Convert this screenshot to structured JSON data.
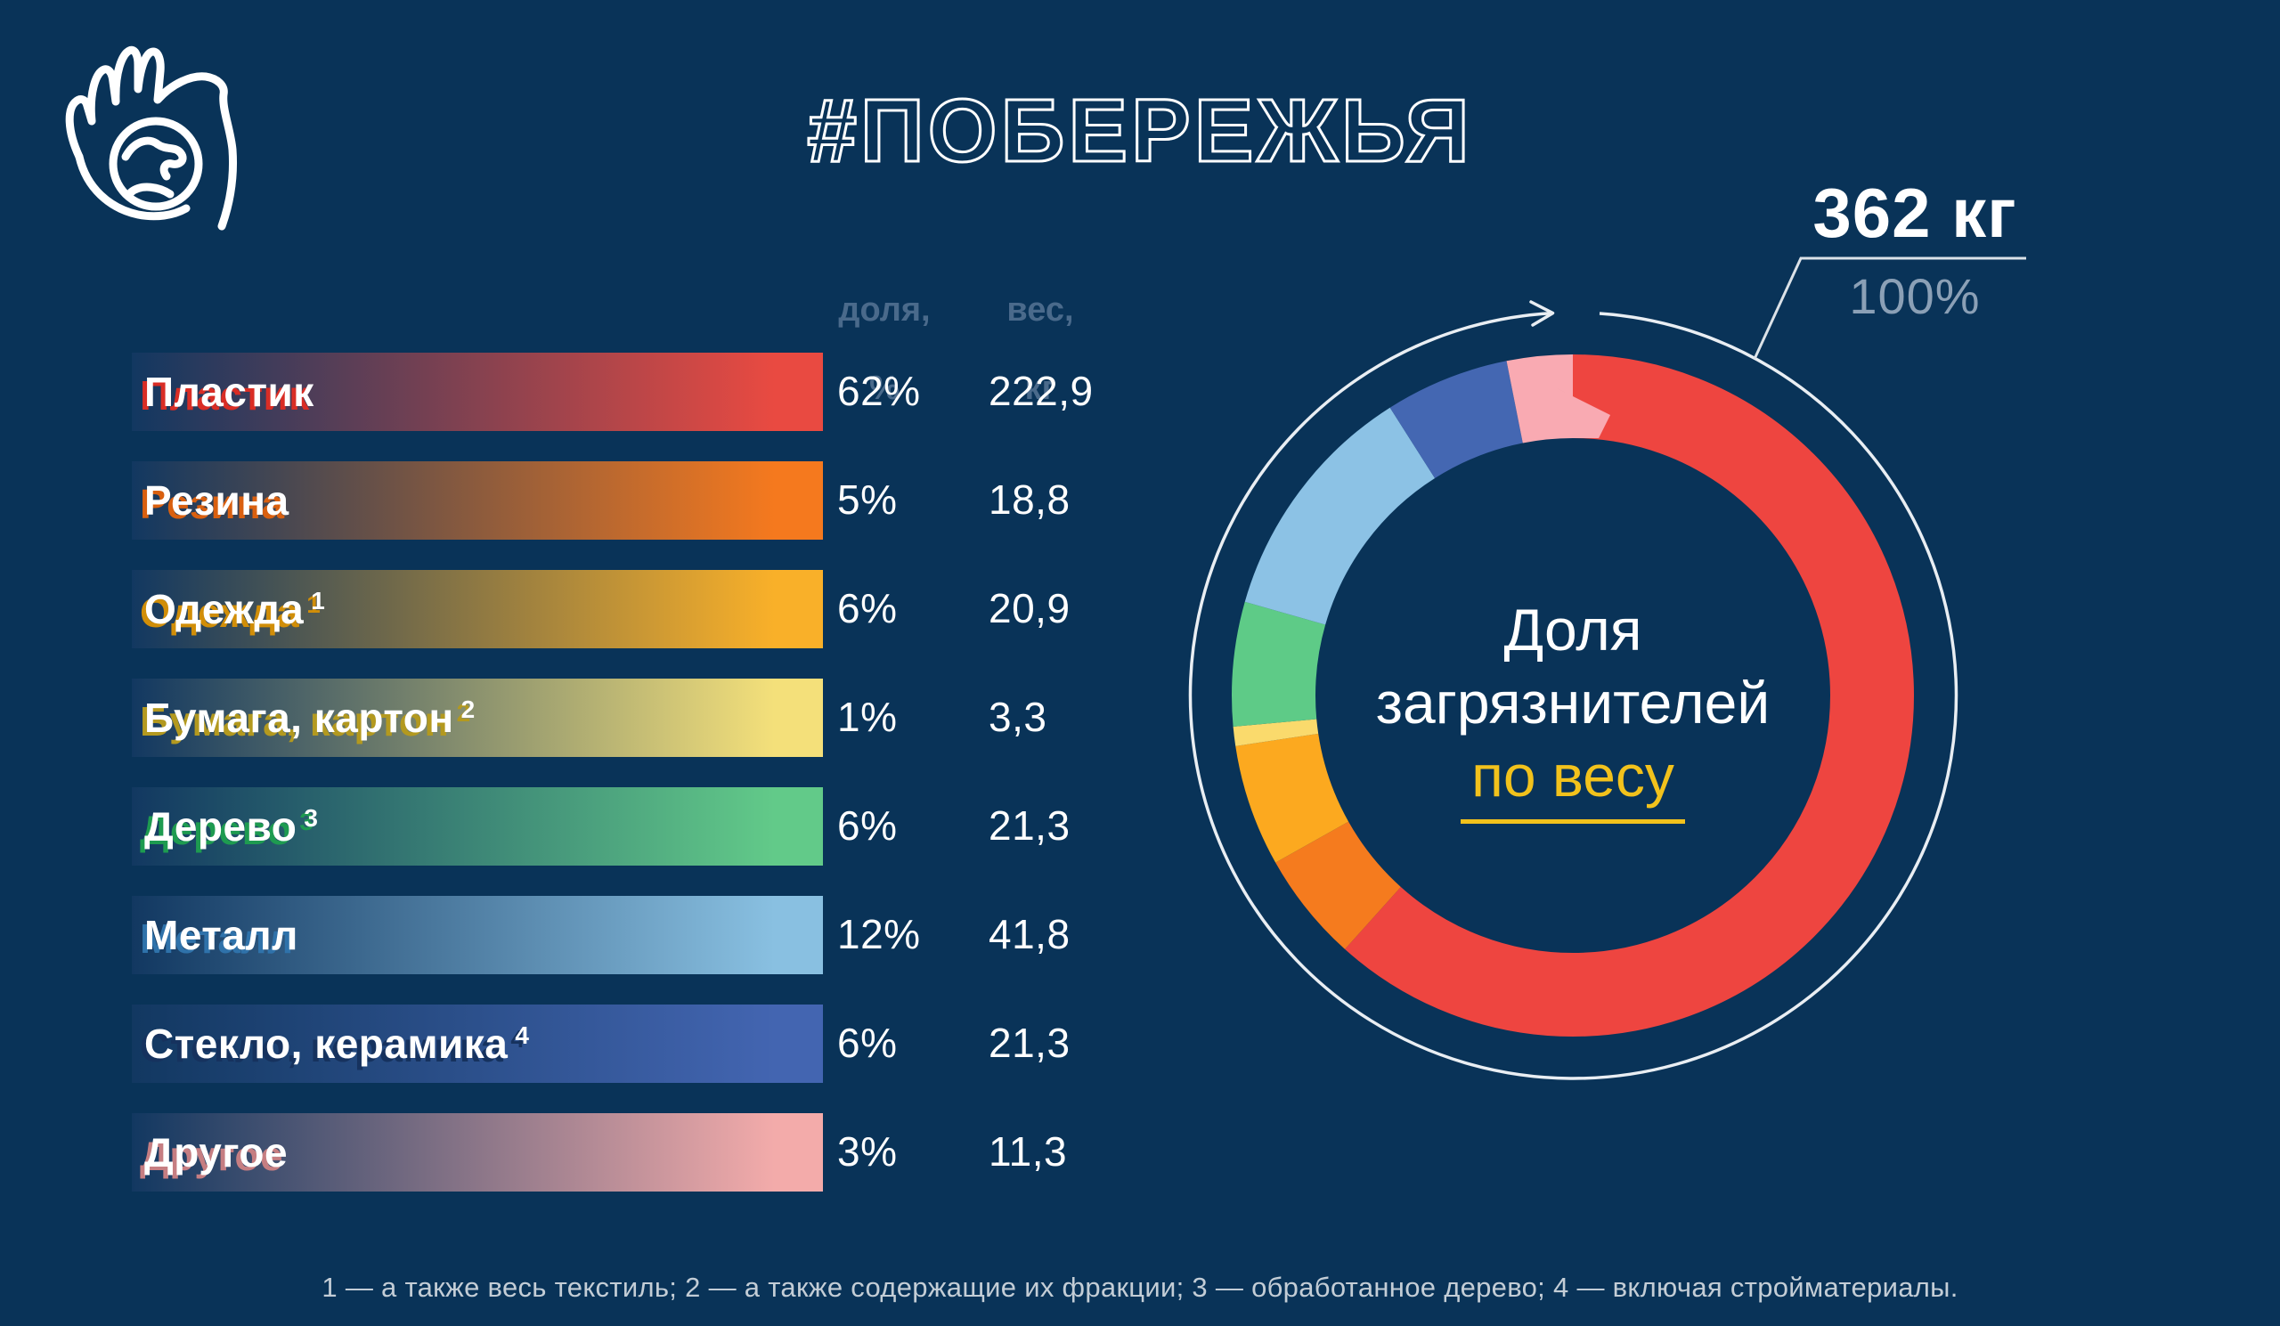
{
  "background_color": "#093358",
  "title": {
    "text": "#ПОБЕРЕЖЬЯ"
  },
  "logo": {
    "icon": "hand-holding-globe-icon"
  },
  "table": {
    "bar_gradient_start": "#123861",
    "header_share": [
      "доля,",
      "%"
    ],
    "header_weight": [
      "вес,",
      "кг"
    ],
    "rows": [
      {
        "label": "Пластик",
        "sup": "",
        "share": "62%",
        "weight": "222,9",
        "weight_kg": 222.9,
        "bar_color": "#e94a41",
        "shadow_color": "#d92d25",
        "donut_color": "#ee4540"
      },
      {
        "label": "Резина",
        "sup": "",
        "share": "5%",
        "weight": "18,8",
        "weight_kg": 18.8,
        "bar_color": "#f5791e",
        "shadow_color": "#d96010",
        "donut_color": "#f57b1e"
      },
      {
        "label": "Одежда",
        "sup": "1",
        "share": "6%",
        "weight": "20,9",
        "weight_kg": 20.9,
        "bar_color": "#f9b029",
        "shadow_color": "#d18e08",
        "donut_color": "#fca91f"
      },
      {
        "label": "Бумага, картон",
        "sup": "2",
        "share": "1%",
        "weight": "3,3",
        "weight_kg": 3.3,
        "bar_color": "#f4e07a",
        "shadow_color": "#b3991f",
        "donut_color": "#fada6c"
      },
      {
        "label": "Дерево",
        "sup": "3",
        "share": "6%",
        "weight": "21,3",
        "weight_kg": 21.3,
        "bar_color": "#62ca89",
        "shadow_color": "#1e9b50",
        "donut_color": "#5ecb87"
      },
      {
        "label": "Металл",
        "sup": "",
        "share": "12%",
        "weight": "41,8",
        "weight_kg": 41.8,
        "bar_color": "#89c0e1",
        "shadow_color": "#2f72aa",
        "donut_color": "#8cc2e5"
      },
      {
        "label": "Стекло, керамика",
        "sup": "4",
        "share": "6%",
        "weight": "21,3",
        "weight_kg": 21.3,
        "bar_color": "#4365b1",
        "shadow_color": "#16325e",
        "donut_color": "#4467b2"
      },
      {
        "label": "Другое",
        "sup": "",
        "share": "3%",
        "weight": "11,3",
        "weight_kg": 11.3,
        "bar_color": "#f3abaa",
        "shadow_color": "#c67e82",
        "donut_color": "#f9aab2"
      }
    ]
  },
  "donut": {
    "total_label": "362 кг",
    "total_share": "100%",
    "center": [
      "Доля",
      "загрязнителей",
      "по весу"
    ],
    "highlight_color": "#f2c21c",
    "ring_outline_color": "#e9eef3"
  },
  "footnote": "1 — а также весь текстиль; 2 — а также содержащие их фракции; 3 — обработанное дерево; 4 — включая стройматериалы.",
  "chart_data": {
    "type": "pie",
    "subtype": "donut",
    "title": "Доля загрязнителей по весу",
    "total_label": "362 кг",
    "total_kg": 362,
    "categories": [
      "Пластик",
      "Резина",
      "Одежда",
      "Бумага, картон",
      "Дерево",
      "Металл",
      "Стекло, керамика",
      "Другое"
    ],
    "series": [
      {
        "name": "доля, %",
        "values": [
          62,
          5,
          6,
          1,
          6,
          12,
          6,
          3
        ]
      },
      {
        "name": "вес, кг",
        "values": [
          222.9,
          18.8,
          20.9,
          3.3,
          21.3,
          41.8,
          21.3,
          11.3
        ]
      }
    ],
    "colors": [
      "#ee4540",
      "#f57b1e",
      "#fca91f",
      "#fada6c",
      "#5ecb87",
      "#8cc2e5",
      "#4467b2",
      "#f9aab2"
    ],
    "start_angle_deg": 0,
    "direction": "clockwise",
    "legend_position": "none",
    "footnotes": [
      "1 — а также весь текстиль",
      "2 — а также содержащие их фракции",
      "3 — обработанное дерево",
      "4 — включая стройматериалы"
    ]
  }
}
